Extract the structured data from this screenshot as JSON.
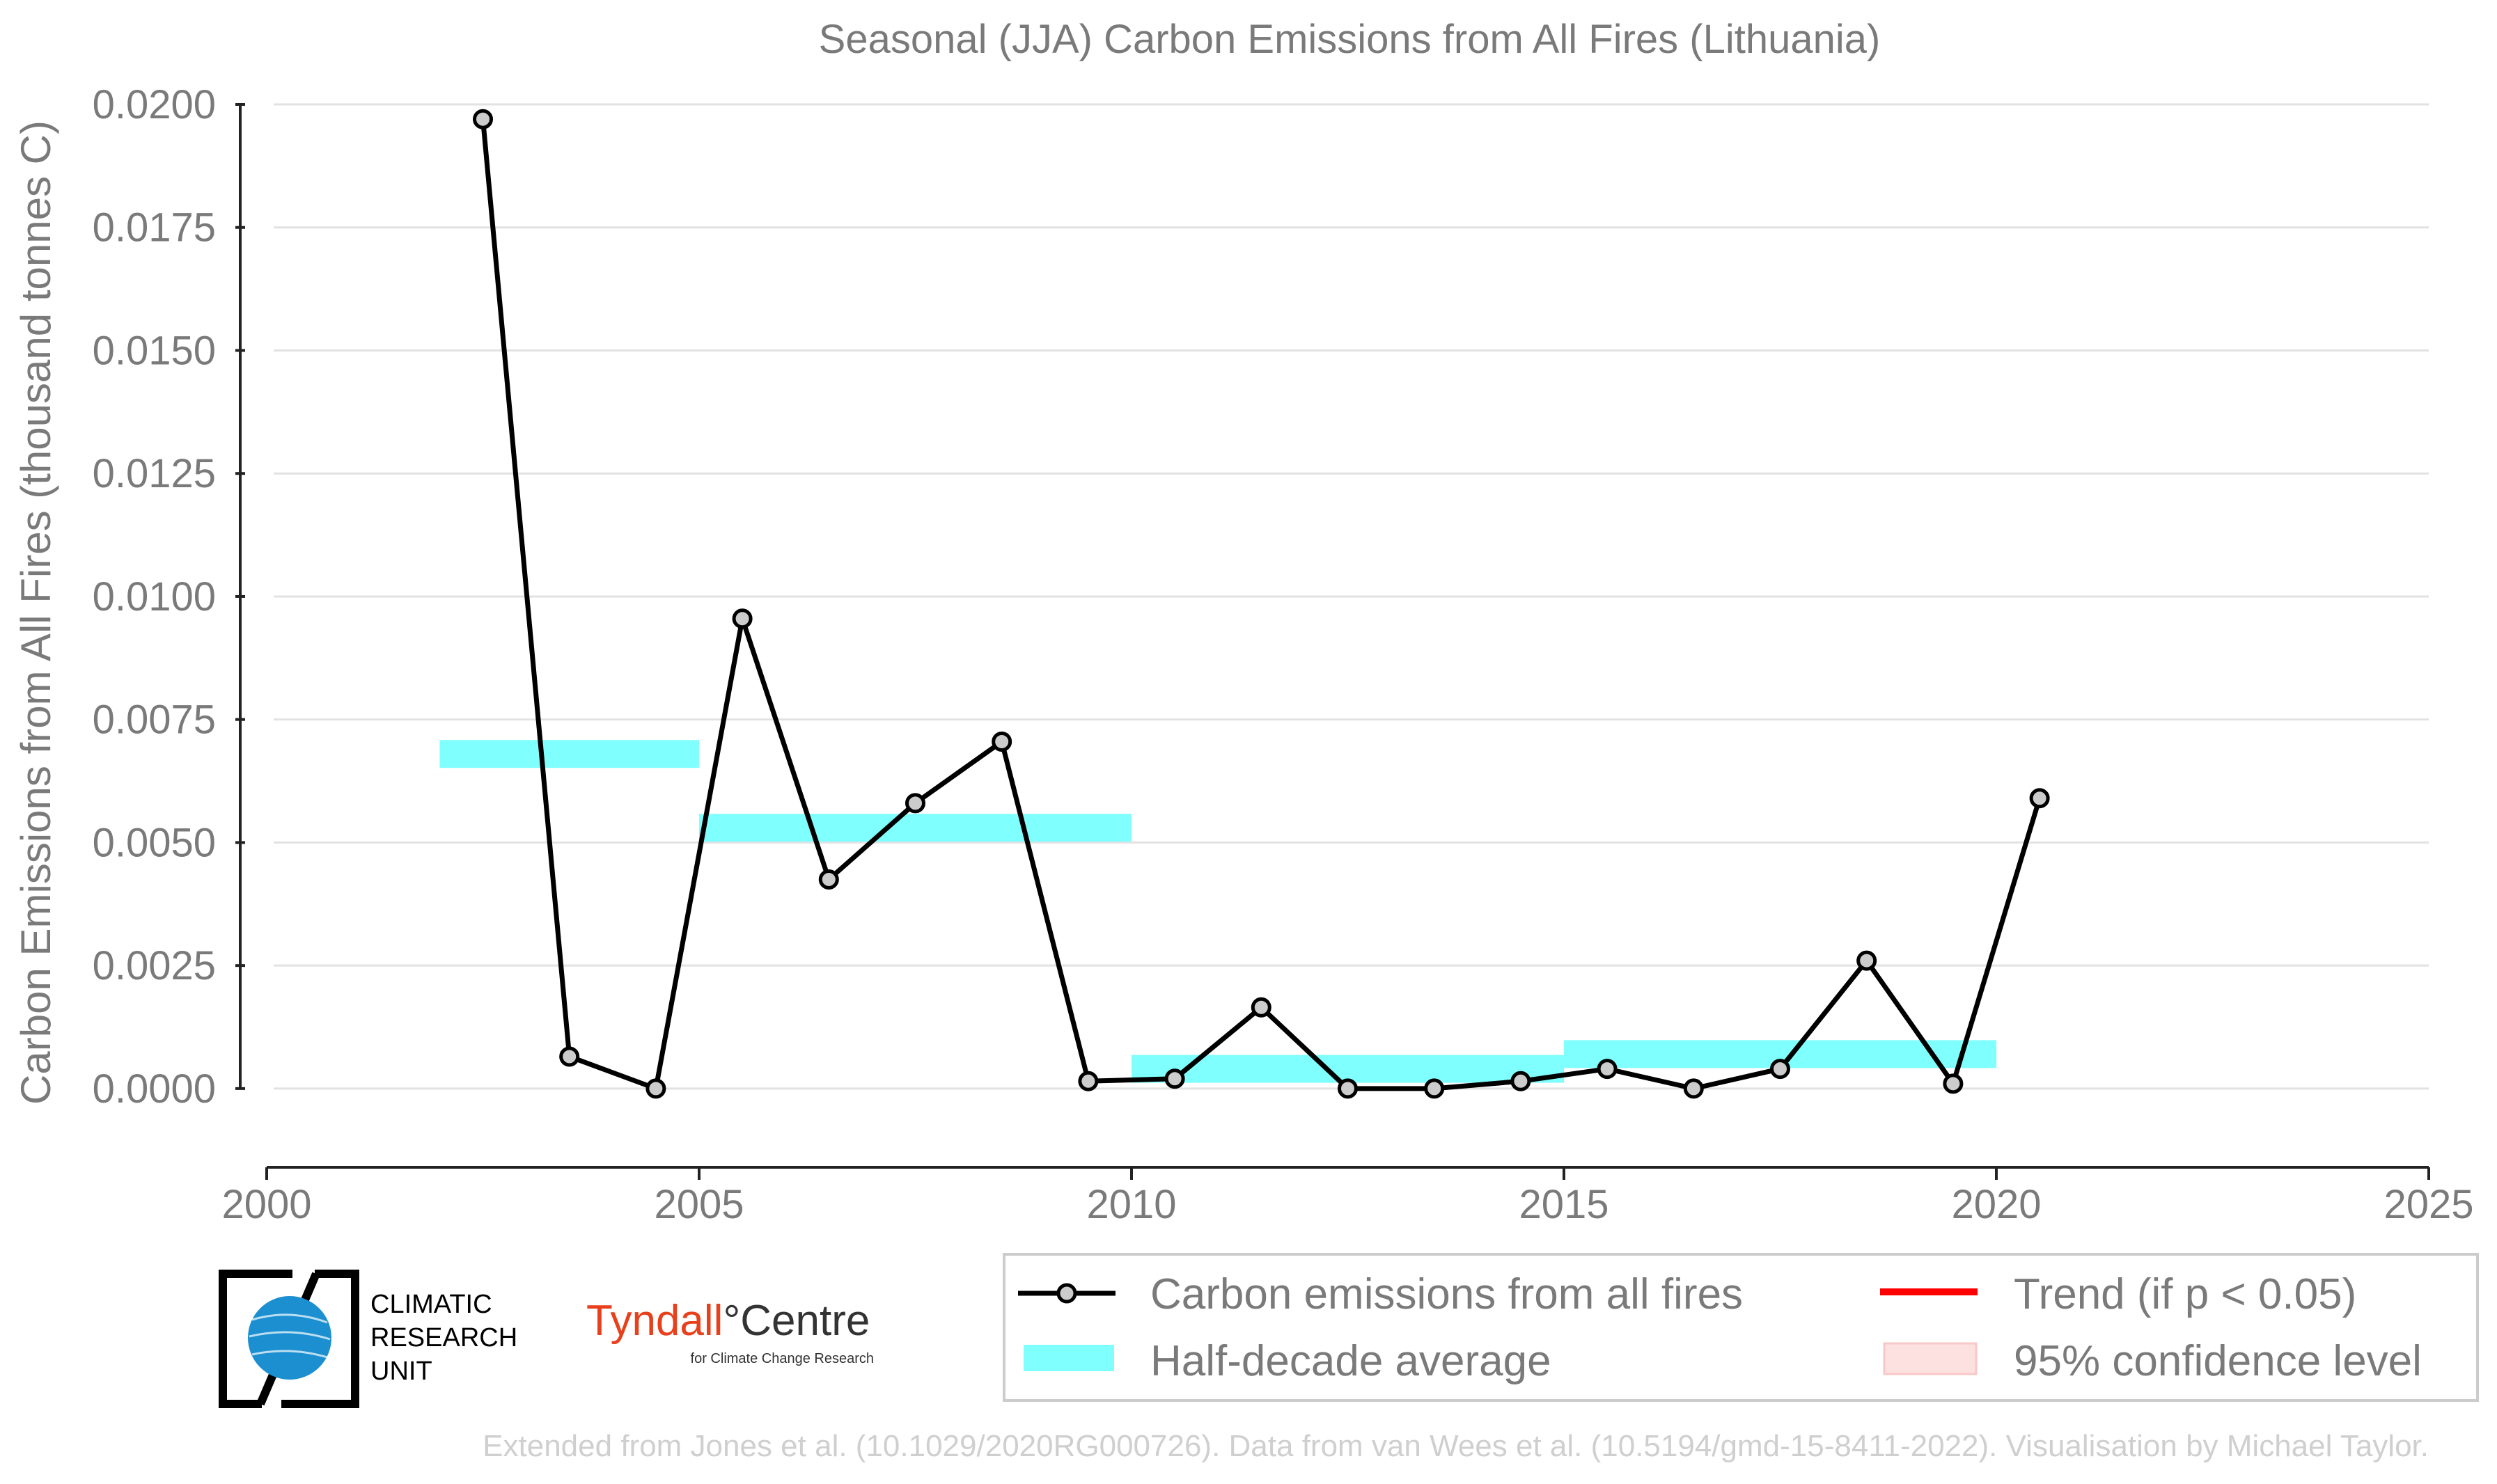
{
  "chart_data": {
    "type": "line",
    "title": "Seasonal (JJA) Carbon Emissions from All Fires (Lithuania)",
    "ylabel": "Carbon Emissions from All Fires (thousand tonnes C)",
    "xlabel": "",
    "xlim": [
      2000,
      2025
    ],
    "ylim": [
      -0.0016,
      0.02
    ],
    "x_ticks": [
      "2000",
      "2005",
      "2010",
      "2015",
      "2020",
      "2025"
    ],
    "y_ticks": [
      "0.0000",
      "0.0025",
      "0.0050",
      "0.0075",
      "0.0100",
      "0.0125",
      "0.0150",
      "0.0175",
      "0.0200"
    ],
    "grid": "horizontal",
    "series": [
      {
        "name": "Carbon emissions from all fires",
        "color": "#000000",
        "marker_fill": "#cccccc",
        "x": [
          2002.5,
          2003.5,
          2004.5,
          2005.5,
          2006.5,
          2007.5,
          2008.5,
          2009.5,
          2010.5,
          2011.5,
          2012.5,
          2013.5,
          2014.5,
          2015.5,
          2016.5,
          2017.5,
          2018.5,
          2019.5,
          2020.5
        ],
        "values": [
          0.0197,
          0.00065,
          0.0,
          0.00955,
          0.00425,
          0.0058,
          0.00705,
          0.00015,
          0.0002,
          0.00165,
          0.0,
          0.0,
          0.00015,
          0.0004,
          0.0,
          0.0004,
          0.0026,
          0.0001,
          0.0059
        ]
      }
    ],
    "half_decade_average": {
      "name": "Half-decade average",
      "color": "#80ffff",
      "segments": [
        {
          "x_start": 2002,
          "x_end": 2005,
          "value": 0.0068
        },
        {
          "x_start": 2005,
          "x_end": 2010,
          "value": 0.0053
        },
        {
          "x_start": 2010,
          "x_end": 2015,
          "value": 0.0004
        },
        {
          "x_start": 2015,
          "x_end": 2020,
          "value": 0.0007
        }
      ]
    },
    "legend": {
      "position": "bottom-right",
      "entries": [
        {
          "label": "Carbon emissions from all fires",
          "kind": "line-marker",
          "color": "#000000"
        },
        {
          "label": "Trend (if p < 0.05)",
          "kind": "line",
          "color": "#ff0000"
        },
        {
          "label": "Half-decade average",
          "kind": "band",
          "color": "#80ffff"
        },
        {
          "label": "95% confidence level",
          "kind": "band",
          "color": "#fde0e0"
        }
      ]
    }
  },
  "logos": {
    "cru": {
      "line1": "CLIMATIC",
      "line2": "RESEARCH",
      "line3": "UNIT"
    },
    "tyndall": {
      "name_part1": "Tyndall",
      "name_part2": "°Centre",
      "subtitle": "for Climate Change Research",
      "accent_color": "#e8401c"
    }
  },
  "footer": "Extended from Jones et al. (10.1029/2020RG000726). Data from van Wees et al. (10.5194/gmd-15-8411-2022). Visualisation by Michael Taylor."
}
